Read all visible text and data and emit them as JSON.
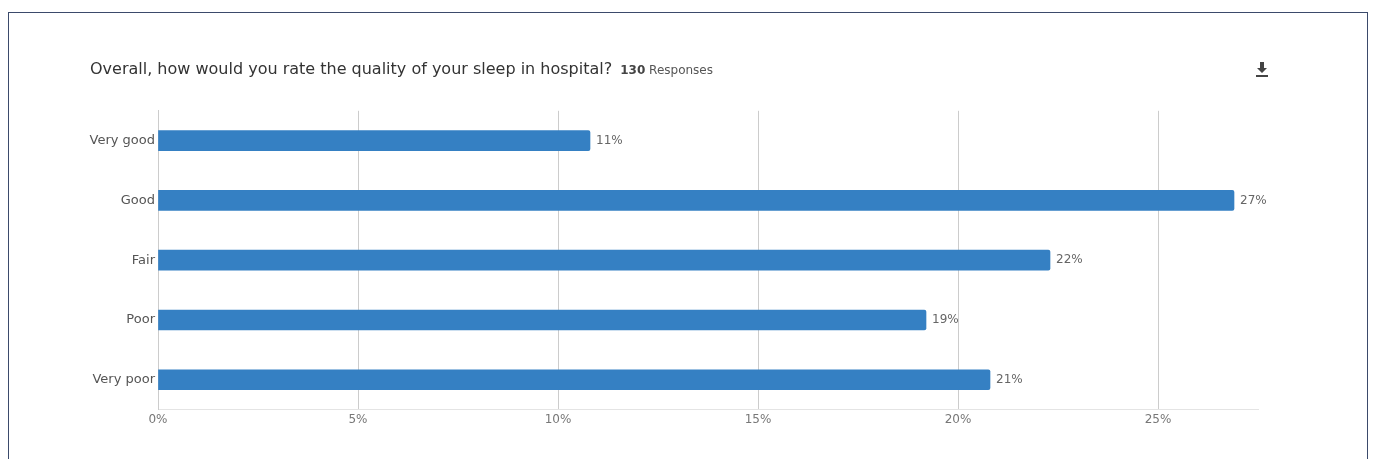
{
  "chart_data": {
    "type": "bar",
    "orientation": "horizontal",
    "title": "Overall, how would you rate the quality of your sleep in hospital?",
    "subtitle": "130 Responses",
    "categories": [
      "Very good",
      "Good",
      "Fair",
      "Poor",
      "Very poor"
    ],
    "values": [
      10.8,
      26.9,
      22.3,
      19.2,
      20.8
    ],
    "value_labels": [
      "11%",
      "27%",
      "22%",
      "19%",
      "21%"
    ],
    "color": "#3580c3",
    "xlim": [
      0,
      27.5
    ],
    "xticks": [
      {
        "value": 0,
        "label": "0%"
      },
      {
        "value": 5,
        "label": "5%"
      },
      {
        "value": 10,
        "label": "10%"
      },
      {
        "value": 15,
        "label": "15%"
      },
      {
        "value": 20,
        "label": "20%"
      },
      {
        "value": 25,
        "label": "25%"
      }
    ],
    "grid": "x",
    "legend": false
  }
}
